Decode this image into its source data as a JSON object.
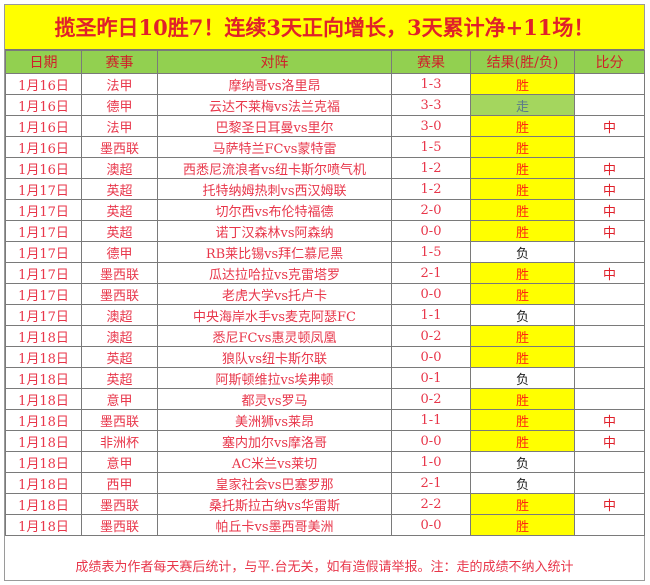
{
  "title": "揽圣昨日10胜7！连续3天正向增长，3天累计净+11场！",
  "headers": [
    "日期",
    "赛事",
    "对阵",
    "赛果",
    "结果(胜/负)",
    "比分"
  ],
  "rows": [
    {
      "date": "1月16日",
      "league": "法甲",
      "match": "摩纳哥vs洛里昂",
      "score": "1-3",
      "result": "胜",
      "mark": ""
    },
    {
      "date": "1月16日",
      "league": "德甲",
      "match": "云达不莱梅vs法兰克福",
      "score": "3-3",
      "result": "走",
      "mark": ""
    },
    {
      "date": "1月16日",
      "league": "法甲",
      "match": "巴黎圣日耳曼vs里尔",
      "score": "3-0",
      "result": "胜",
      "mark": "中"
    },
    {
      "date": "1月16日",
      "league": "墨西联",
      "match": "马萨特兰FCvs蒙特雷",
      "score": "1-5",
      "result": "胜",
      "mark": ""
    },
    {
      "date": "1月16日",
      "league": "澳超",
      "match": "西悉尼流浪者vs纽卡斯尔喷气机",
      "score": "1-2",
      "result": "胜",
      "mark": "中"
    },
    {
      "date": "1月17日",
      "league": "英超",
      "match": "托特纳姆热刺vs西汉姆联",
      "score": "1-2",
      "result": "胜",
      "mark": "中"
    },
    {
      "date": "1月17日",
      "league": "英超",
      "match": "切尔西vs布伦特福德",
      "score": "2-0",
      "result": "胜",
      "mark": "中"
    },
    {
      "date": "1月17日",
      "league": "英超",
      "match": "诺丁汉森林vs阿森纳",
      "score": "0-0",
      "result": "胜",
      "mark": "中"
    },
    {
      "date": "1月17日",
      "league": "德甲",
      "match": "RB莱比锡vs拜仁慕尼黑",
      "score": "1-5",
      "result": "负",
      "mark": ""
    },
    {
      "date": "1月17日",
      "league": "墨西联",
      "match": "瓜达拉哈拉vs克雷塔罗",
      "score": "2-1",
      "result": "胜",
      "mark": "中"
    },
    {
      "date": "1月17日",
      "league": "墨西联",
      "match": "老虎大学vs托卢卡",
      "score": "0-0",
      "result": "胜",
      "mark": ""
    },
    {
      "date": "1月17日",
      "league": "澳超",
      "match": "中央海岸水手vs麦克阿瑟FC",
      "score": "1-1",
      "result": "负",
      "mark": ""
    },
    {
      "date": "1月18日",
      "league": "澳超",
      "match": "悉尼FCvs惠灵顿凤凰",
      "score": "0-2",
      "result": "胜",
      "mark": ""
    },
    {
      "date": "1月18日",
      "league": "英超",
      "match": "狼队vs纽卡斯尔联",
      "score": "0-0",
      "result": "胜",
      "mark": ""
    },
    {
      "date": "1月18日",
      "league": "英超",
      "match": "阿斯顿维拉vs埃弗顿",
      "score": "0-1",
      "result": "负",
      "mark": ""
    },
    {
      "date": "1月18日",
      "league": "意甲",
      "match": "都灵vs罗马",
      "score": "0-2",
      "result": "胜",
      "mark": ""
    },
    {
      "date": "1月18日",
      "league": "墨西联",
      "match": "美洲狮vs莱昂",
      "score": "1-1",
      "result": "胜",
      "mark": "中"
    },
    {
      "date": "1月18日",
      "league": "非洲杯",
      "match": "塞内加尔vs摩洛哥",
      "score": "0-0",
      "result": "胜",
      "mark": "中"
    },
    {
      "date": "1月18日",
      "league": "意甲",
      "match": "AC米兰vs莱切",
      "score": "1-0",
      "result": "负",
      "mark": ""
    },
    {
      "date": "1月18日",
      "league": "西甲",
      "match": "皇家社会vs巴塞罗那",
      "score": "2-1",
      "result": "负",
      "mark": ""
    },
    {
      "date": "1月18日",
      "league": "墨西联",
      "match": "桑托斯拉古纳vs华雷斯",
      "score": "2-2",
      "result": "胜",
      "mark": "中"
    },
    {
      "date": "1月18日",
      "league": "墨西联",
      "match": "帕丘卡vs墨西哥美洲",
      "score": "0-0",
      "result": "胜",
      "mark": ""
    }
  ],
  "footer": "成绩表为作者每天赛后统计，与平.台无关，如有造假请举报。注：走的成绩不纳入统计",
  "colors": {
    "title_bg": "#ffff00",
    "header_bg": "#92d050",
    "win_bg": "#ffff00",
    "push_bg": "#a4d65e",
    "text_red": "#e8364a"
  }
}
